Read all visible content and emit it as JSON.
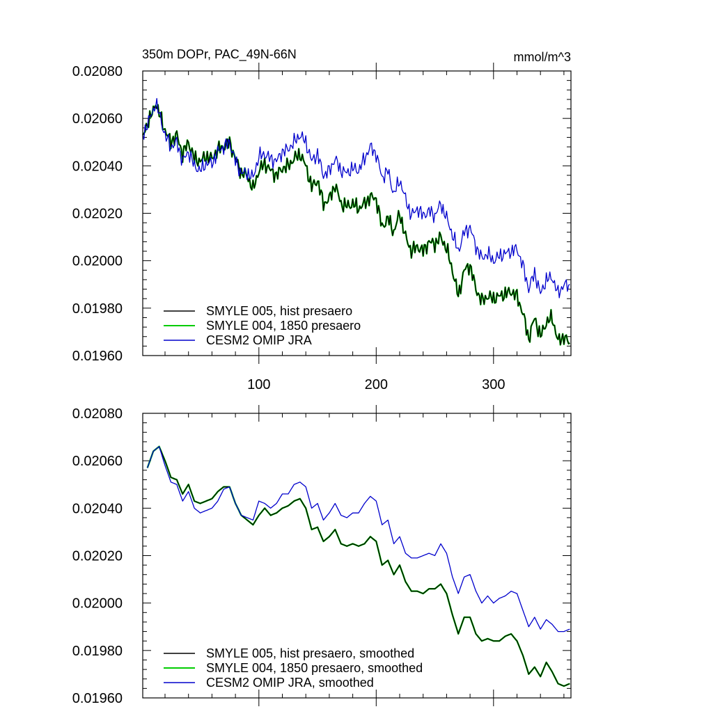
{
  "chart_data": [
    {
      "type": "line",
      "title_left": "350m DOPr, PAC_49N-66N",
      "title_right": "mmol/m^3",
      "xlim": [
        1,
        366
      ],
      "ylim": [
        0.0196,
        0.0208
      ],
      "xticks": [
        100,
        200,
        300
      ],
      "xtick_labels": [
        "100",
        "200",
        "300"
      ],
      "show_x_labels": true,
      "yticks": [
        0.0196,
        0.0198,
        0.02,
        0.0202,
        0.0204,
        0.0206,
        0.0208
      ],
      "ytick_labels": [
        "0.01960",
        "0.01980",
        "0.02000",
        "0.02020",
        "0.02040",
        "0.02060",
        "0.02080"
      ],
      "legend": [
        "SMYLE 005, hist presaero",
        "SMYLE 004, 1850 presaero",
        "CESM2 OMIP JRA"
      ],
      "legend_position": "bottom-left",
      "series": [
        {
          "name": "SMYLE 005, hist presaero",
          "color": "#000000",
          "noisy": true,
          "x": [
            1,
            5,
            10,
            12,
            15,
            20,
            25,
            30,
            35,
            40,
            45,
            50,
            55,
            60,
            65,
            70,
            75,
            80,
            85,
            90,
            95,
            100,
            105,
            110,
            115,
            120,
            125,
            130,
            135,
            140,
            145,
            150,
            155,
            160,
            165,
            170,
            175,
            180,
            185,
            190,
            195,
            200,
            205,
            210,
            215,
            220,
            225,
            230,
            235,
            240,
            245,
            250,
            255,
            260,
            265,
            270,
            275,
            280,
            285,
            290,
            295,
            300,
            305,
            310,
            315,
            320,
            325,
            330,
            335,
            340,
            345,
            350,
            355,
            360,
            365
          ],
          "values": [
            0.02052,
            0.02058,
            0.02063,
            0.02067,
            0.02062,
            0.02055,
            0.0205,
            0.02053,
            0.02045,
            0.0205,
            0.02043,
            0.02042,
            0.02044,
            0.02043,
            0.02047,
            0.02048,
            0.0205,
            0.02043,
            0.02037,
            0.02036,
            0.0203,
            0.02038,
            0.02041,
            0.02038,
            0.02036,
            0.02039,
            0.0204,
            0.02043,
            0.02045,
            0.0204,
            0.02031,
            0.02034,
            0.02024,
            0.02026,
            0.02032,
            0.02024,
            0.02023,
            0.02024,
            0.02022,
            0.02024,
            0.02027,
            0.02026,
            0.02014,
            0.02018,
            0.02012,
            0.0202,
            0.0201,
            0.02004,
            0.02006,
            0.02004,
            0.02008,
            0.02007,
            0.0201,
            0.02005,
            0.01996,
            0.01985,
            0.01996,
            0.01998,
            0.01988,
            0.01983,
            0.01985,
            0.01984,
            0.01985,
            0.01986,
            0.01987,
            0.01985,
            0.01978,
            0.01967,
            0.01976,
            0.01968,
            0.01974,
            0.01976,
            0.01966,
            0.01968,
            0.01965
          ]
        },
        {
          "name": "SMYLE 004, 1850 presaero",
          "color": "#00cc00",
          "noisy": true,
          "x": [
            1,
            5,
            10,
            12,
            15,
            20,
            25,
            30,
            35,
            40,
            45,
            50,
            55,
            60,
            65,
            70,
            75,
            80,
            85,
            90,
            95,
            100,
            105,
            110,
            115,
            120,
            125,
            130,
            135,
            140,
            145,
            150,
            155,
            160,
            165,
            170,
            175,
            180,
            185,
            190,
            195,
            200,
            205,
            210,
            215,
            220,
            225,
            230,
            235,
            240,
            245,
            250,
            255,
            260,
            265,
            270,
            275,
            280,
            285,
            290,
            295,
            300,
            305,
            310,
            315,
            320,
            325,
            330,
            335,
            340,
            345,
            350,
            355,
            360,
            365
          ],
          "values": [
            0.02052,
            0.02058,
            0.02063,
            0.02067,
            0.02062,
            0.02055,
            0.0205,
            0.02053,
            0.02045,
            0.0205,
            0.02043,
            0.02042,
            0.02044,
            0.02043,
            0.02047,
            0.02048,
            0.0205,
            0.02043,
            0.02037,
            0.02036,
            0.0203,
            0.02038,
            0.02041,
            0.02038,
            0.02036,
            0.02039,
            0.0204,
            0.02043,
            0.02045,
            0.0204,
            0.02031,
            0.02034,
            0.02024,
            0.02026,
            0.02032,
            0.02024,
            0.02023,
            0.02024,
            0.02022,
            0.02024,
            0.02027,
            0.02026,
            0.02014,
            0.02018,
            0.02012,
            0.0202,
            0.0201,
            0.02004,
            0.02006,
            0.02004,
            0.02008,
            0.02007,
            0.0201,
            0.02005,
            0.01996,
            0.01985,
            0.01996,
            0.01998,
            0.01988,
            0.01983,
            0.01985,
            0.01984,
            0.01985,
            0.01986,
            0.01987,
            0.01985,
            0.01978,
            0.01967,
            0.01976,
            0.01968,
            0.01974,
            0.01976,
            0.01966,
            0.01968,
            0.01965
          ]
        },
        {
          "name": "CESM2 OMIP JRA",
          "color": "#0000cc",
          "noisy": true,
          "x": [
            1,
            5,
            10,
            12,
            15,
            20,
            25,
            30,
            35,
            40,
            45,
            50,
            55,
            60,
            65,
            70,
            75,
            80,
            85,
            90,
            95,
            100,
            105,
            110,
            115,
            120,
            125,
            130,
            135,
            140,
            145,
            150,
            155,
            160,
            165,
            170,
            175,
            180,
            185,
            190,
            195,
            200,
            205,
            210,
            215,
            220,
            225,
            230,
            235,
            240,
            245,
            250,
            255,
            260,
            265,
            270,
            275,
            280,
            285,
            290,
            295,
            300,
            305,
            310,
            315,
            320,
            325,
            330,
            335,
            340,
            345,
            350,
            355,
            360,
            365
          ],
          "values": [
            0.02052,
            0.02058,
            0.02063,
            0.02067,
            0.02062,
            0.02053,
            0.02048,
            0.0205,
            0.02042,
            0.02046,
            0.0204,
            0.02038,
            0.02041,
            0.02041,
            0.02046,
            0.02048,
            0.0205,
            0.02042,
            0.02037,
            0.02037,
            0.02035,
            0.02044,
            0.02045,
            0.02043,
            0.02042,
            0.02046,
            0.02047,
            0.0205,
            0.02053,
            0.0205,
            0.02042,
            0.02045,
            0.02036,
            0.02038,
            0.02043,
            0.02038,
            0.02037,
            0.02039,
            0.02038,
            0.02043,
            0.02048,
            0.02045,
            0.02035,
            0.02038,
            0.02028,
            0.02034,
            0.02026,
            0.02019,
            0.02022,
            0.02019,
            0.02021,
            0.02019,
            0.02024,
            0.02018,
            0.02011,
            0.02004,
            0.02012,
            0.02014,
            0.02006,
            0.02001,
            0.02003,
            0.02,
            0.02002,
            0.02003,
            0.02004,
            0.02005,
            0.01998,
            0.01988,
            0.01995,
            0.01986,
            0.01992,
            0.01993,
            0.01986,
            0.0199,
            0.01989
          ]
        }
      ]
    },
    {
      "type": "line",
      "xlim": [
        1,
        366
      ],
      "ylim": [
        0.0196,
        0.0208
      ],
      "xticks": [
        100,
        200,
        300
      ],
      "xtick_labels": [],
      "show_x_labels": false,
      "yticks": [
        0.0196,
        0.0198,
        0.02,
        0.0202,
        0.0204,
        0.0206,
        0.0208
      ],
      "ytick_labels": [
        "0.01960",
        "0.01980",
        "0.02000",
        "0.02020",
        "0.02040",
        "0.02060",
        "0.02080"
      ],
      "legend": [
        "SMYLE 005, hist presaero, smoothed",
        "SMYLE 004, 1850 presaero, smoothed",
        "CESM2 OMIP JRA, smoothed"
      ],
      "legend_position": "bottom-left",
      "series": [
        {
          "name": "SMYLE 005, hist presaero, smoothed",
          "color": "#000000",
          "noisy": false,
          "x": [
            5,
            10,
            15,
            20,
            25,
            30,
            35,
            40,
            45,
            50,
            55,
            60,
            65,
            70,
            75,
            80,
            85,
            90,
            95,
            100,
            105,
            110,
            115,
            120,
            125,
            130,
            135,
            140,
            145,
            150,
            155,
            160,
            165,
            170,
            175,
            180,
            185,
            190,
            195,
            200,
            205,
            210,
            215,
            220,
            225,
            230,
            235,
            240,
            245,
            250,
            255,
            260,
            265,
            270,
            275,
            280,
            285,
            290,
            295,
            300,
            305,
            310,
            315,
            320,
            325,
            330,
            335,
            340,
            345,
            350,
            355,
            360,
            365
          ],
          "values": [
            0.02057,
            0.02064,
            0.02066,
            0.0206,
            0.02053,
            0.02052,
            0.02046,
            0.0205,
            0.02043,
            0.02042,
            0.02043,
            0.02044,
            0.02047,
            0.02049,
            0.02049,
            0.02042,
            0.02037,
            0.02035,
            0.02033,
            0.02037,
            0.0204,
            0.02037,
            0.02038,
            0.0204,
            0.02041,
            0.02043,
            0.02044,
            0.0204,
            0.02031,
            0.02032,
            0.02026,
            0.02028,
            0.02031,
            0.02025,
            0.02024,
            0.02025,
            0.02024,
            0.02025,
            0.02028,
            0.02026,
            0.02016,
            0.02018,
            0.02012,
            0.02016,
            0.02009,
            0.02005,
            0.02005,
            0.02004,
            0.02006,
            0.02006,
            0.02008,
            0.02004,
            0.01995,
            0.01987,
            0.01994,
            0.01994,
            0.01987,
            0.01984,
            0.01985,
            0.01984,
            0.01984,
            0.01986,
            0.01987,
            0.01984,
            0.01978,
            0.0197,
            0.01973,
            0.01969,
            0.01975,
            0.01971,
            0.01966,
            0.01965,
            0.01966
          ]
        },
        {
          "name": "SMYLE 004, 1850 presaero, smoothed",
          "color": "#00cc00",
          "noisy": false,
          "x": [
            5,
            10,
            15,
            20,
            25,
            30,
            35,
            40,
            45,
            50,
            55,
            60,
            65,
            70,
            75,
            80,
            85,
            90,
            95,
            100,
            105,
            110,
            115,
            120,
            125,
            130,
            135,
            140,
            145,
            150,
            155,
            160,
            165,
            170,
            175,
            180,
            185,
            190,
            195,
            200,
            205,
            210,
            215,
            220,
            225,
            230,
            235,
            240,
            245,
            250,
            255,
            260,
            265,
            270,
            275,
            280,
            285,
            290,
            295,
            300,
            305,
            310,
            315,
            320,
            325,
            330,
            335,
            340,
            345,
            350,
            355,
            360,
            365
          ],
          "values": [
            0.02057,
            0.02064,
            0.02066,
            0.0206,
            0.02053,
            0.02052,
            0.02046,
            0.0205,
            0.02043,
            0.02042,
            0.02043,
            0.02044,
            0.02047,
            0.02049,
            0.02049,
            0.02042,
            0.02037,
            0.02035,
            0.02033,
            0.02037,
            0.0204,
            0.02037,
            0.02038,
            0.0204,
            0.02041,
            0.02043,
            0.02044,
            0.0204,
            0.02031,
            0.02032,
            0.02026,
            0.02028,
            0.02031,
            0.02025,
            0.02024,
            0.02025,
            0.02024,
            0.02025,
            0.02028,
            0.02026,
            0.02016,
            0.02018,
            0.02012,
            0.02016,
            0.02009,
            0.02005,
            0.02005,
            0.02004,
            0.02006,
            0.02006,
            0.02008,
            0.02004,
            0.01995,
            0.01987,
            0.01994,
            0.01994,
            0.01987,
            0.01984,
            0.01985,
            0.01984,
            0.01984,
            0.01986,
            0.01987,
            0.01984,
            0.01978,
            0.0197,
            0.01973,
            0.01969,
            0.01975,
            0.01971,
            0.01966,
            0.01965,
            0.01966
          ]
        },
        {
          "name": "CESM2 OMIP JRA, smoothed",
          "color": "#0000cc",
          "noisy": false,
          "x": [
            5,
            10,
            15,
            20,
            25,
            30,
            35,
            40,
            45,
            50,
            55,
            60,
            65,
            70,
            75,
            80,
            85,
            90,
            95,
            100,
            105,
            110,
            115,
            120,
            125,
            130,
            135,
            140,
            145,
            150,
            155,
            160,
            165,
            170,
            175,
            180,
            185,
            190,
            195,
            200,
            205,
            210,
            215,
            220,
            225,
            230,
            235,
            240,
            245,
            250,
            255,
            260,
            265,
            270,
            275,
            280,
            285,
            290,
            295,
            300,
            305,
            310,
            315,
            320,
            325,
            330,
            335,
            340,
            345,
            350,
            355,
            360,
            365
          ],
          "values": [
            0.02057,
            0.02064,
            0.02066,
            0.02058,
            0.02051,
            0.0205,
            0.02043,
            0.02047,
            0.0204,
            0.02038,
            0.02039,
            0.0204,
            0.02043,
            0.02048,
            0.02049,
            0.02042,
            0.02037,
            0.02036,
            0.02035,
            0.02043,
            0.02042,
            0.0204,
            0.02042,
            0.02046,
            0.02046,
            0.0205,
            0.02051,
            0.02049,
            0.0204,
            0.02042,
            0.02035,
            0.02038,
            0.02042,
            0.02037,
            0.02036,
            0.02038,
            0.02038,
            0.02042,
            0.02045,
            0.02043,
            0.02033,
            0.02035,
            0.02025,
            0.02028,
            0.02021,
            0.02019,
            0.02019,
            0.0202,
            0.02021,
            0.0202,
            0.02025,
            0.02021,
            0.02011,
            0.02004,
            0.02011,
            0.02012,
            0.02005,
            0.02,
            0.02003,
            0.02,
            0.02002,
            0.02003,
            0.02005,
            0.02004,
            0.01997,
            0.0199,
            0.01994,
            0.01989,
            0.01993,
            0.01991,
            0.01988,
            0.01988,
            0.01989
          ]
        }
      ]
    }
  ]
}
